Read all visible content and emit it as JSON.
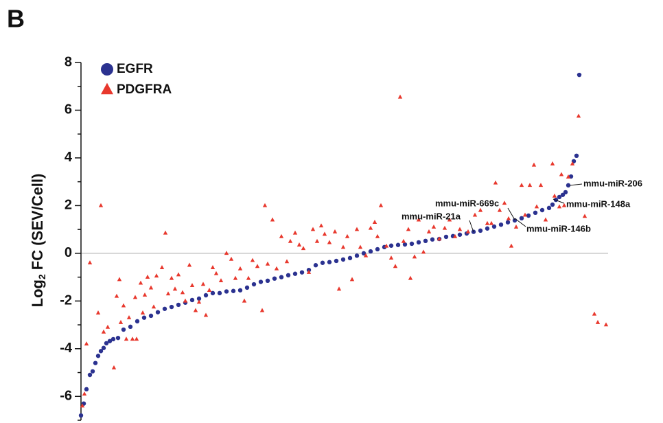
{
  "panel_label": "B",
  "chart_data": {
    "type": "scatter",
    "y_label": {
      "main": "Log",
      "sub": "2",
      "rest": "FC (SEV/Cell)"
    },
    "xlim": [
      0,
      310
    ],
    "ylim": [
      -7,
      8
    ],
    "yticks": [
      -6,
      -4,
      -2,
      0,
      2,
      4,
      6,
      8
    ],
    "yminor_ticks": [
      -7,
      -5,
      -3,
      -1,
      1,
      3,
      5,
      7
    ],
    "hline": 0,
    "legend": "top-left",
    "series": [
      {
        "name": "EGFR",
        "marker": "circle",
        "color": "#2b3290",
        "x": [
          0,
          1.6,
          3.2,
          5.2,
          6.8,
          8.4,
          10,
          11.6,
          13.2,
          14.8,
          16.8,
          18.8,
          21.6,
          24.8,
          28.8,
          32.8,
          36.8,
          40.8,
          44.8,
          48.8,
          52.8,
          56.8,
          60.8,
          64.8,
          68.8,
          72.8,
          76.8,
          80.8,
          84.8,
          88.8,
          92.8,
          96.8,
          100.8,
          104.8,
          108.8,
          112.8,
          116.8,
          120.8,
          124.8,
          128.8,
          132.8,
          136.8,
          140.8,
          144.8,
          148.8,
          152.8,
          156.8,
          160.8,
          164.8,
          168.8,
          172.8,
          176.8,
          180.8,
          184.8,
          188.8,
          192.8,
          196.8,
          200.8,
          204.8,
          208.8,
          212.8,
          216.8,
          220.8,
          224.8,
          228.8,
          232.8,
          236.8,
          240.8,
          244.8,
          248.8,
          252.8,
          256.8,
          260.8,
          264.8,
          268.8,
          272.8,
          274.8,
          276.8,
          278.8,
          280.8,
          282.4,
          284,
          285.6,
          287.2,
          288.8,
          290.4
        ],
        "values": [
          -6.8,
          -6.3,
          -5.7,
          -5.1,
          -4.95,
          -4.6,
          -4.3,
          -4.1,
          -3.97,
          -3.77,
          -3.68,
          -3.6,
          -3.55,
          -3.2,
          -3.08,
          -2.85,
          -2.7,
          -2.62,
          -2.47,
          -2.33,
          -2.25,
          -2.16,
          -2.07,
          -1.96,
          -1.9,
          -1.76,
          -1.67,
          -1.67,
          -1.6,
          -1.58,
          -1.55,
          -1.44,
          -1.3,
          -1.2,
          -1.15,
          -1.06,
          -1.0,
          -0.92,
          -0.86,
          -0.8,
          -0.7,
          -0.5,
          -0.4,
          -0.37,
          -0.32,
          -0.26,
          -0.2,
          -0.1,
          0,
          0.08,
          0.17,
          0.26,
          0.32,
          0.35,
          0.37,
          0.4,
          0.46,
          0.52,
          0.58,
          0.6,
          0.69,
          0.72,
          0.78,
          0.83,
          0.9,
          0.95,
          1.04,
          1.12,
          1.2,
          1.3,
          1.38,
          1.47,
          1.58,
          1.7,
          1.81,
          1.9,
          2.04,
          2.24,
          2.36,
          2.45,
          2.56,
          2.85,
          3.22,
          3.86,
          4.09,
          7.48
        ]
      },
      {
        "name": "PDGFRA",
        "marker": "triangle",
        "color": "#e8382d",
        "x": [
          0.8,
          2,
          3.2,
          5.2,
          10,
          11.6,
          13.2,
          15.6,
          19.2,
          20.8,
          22.4,
          23.2,
          24.8,
          26.4,
          28,
          30,
          31.6,
          32.4,
          34.8,
          36,
          37.2,
          38.8,
          40.8,
          42.4,
          44,
          47.2,
          49.2,
          50.8,
          52.8,
          54.8,
          56.8,
          59.2,
          60.8,
          63.2,
          64.8,
          66.8,
          68.8,
          71.2,
          72.8,
          74.8,
          76.8,
          78.8,
          81.6,
          84.8,
          87.6,
          90,
          92.8,
          95.2,
          97.6,
          100,
          102.8,
          105.6,
          107.2,
          108.8,
          111.6,
          114,
          116.8,
          120,
          122,
          124.8,
          127.2,
          129.6,
          132.8,
          135.2,
          137.6,
          140,
          142,
          144.8,
          148,
          150.4,
          152.8,
          155.2,
          158,
          160.8,
          162.8,
          166,
          168.8,
          171.2,
          172.8,
          174.8,
          178,
          180.8,
          183.2,
          186,
          188,
          190.8,
          192,
          194.4,
          196.8,
          199.6,
          202.8,
          205.6,
          208.8,
          212,
          214.8,
          218,
          220.8,
          225.6,
          229.6,
          232.8,
          236.8,
          239.2,
          241.6,
          244,
          246.8,
          249.2,
          250.8,
          253.6,
          256.8,
          258.8,
          261.6,
          264,
          265.6,
          268,
          270.8,
          274.8,
          276,
          278.8,
          280,
          281.6,
          284,
          286.4,
          290,
          293.6,
          299.2,
          301.2,
          306
        ],
        "values": [
          -6.4,
          -5.9,
          -3.8,
          -0.4,
          -2.5,
          2.0,
          -3.3,
          -3.1,
          -4.8,
          -1.8,
          -1.1,
          -2.9,
          -2.2,
          -3.6,
          -2.7,
          -3.6,
          -1.85,
          -3.6,
          -1.25,
          -2.5,
          -1.75,
          -1.0,
          -1.45,
          -2.25,
          -0.95,
          -0.6,
          0.85,
          -1.7,
          -1.05,
          -1.5,
          -0.9,
          -1.65,
          -2.0,
          -0.5,
          -1.35,
          -2.4,
          -2.05,
          -1.3,
          -2.6,
          -1.55,
          -0.6,
          -0.85,
          -1.15,
          0,
          -0.25,
          -1.05,
          -0.65,
          -2.0,
          -1.05,
          -0.3,
          -0.55,
          -2.4,
          2.0,
          -0.45,
          1.4,
          -0.65,
          0.7,
          -0.35,
          0.5,
          0.85,
          0.35,
          0.2,
          -0.8,
          1.0,
          0.5,
          1.15,
          0.8,
          0.45,
          0.9,
          -1.5,
          0.25,
          0.7,
          -1.1,
          1.0,
          0.25,
          -0.1,
          1.05,
          1.3,
          0.7,
          2.0,
          0.3,
          -0.2,
          -0.55,
          6.55,
          0.5,
          1.0,
          -1.05,
          -0.15,
          1.4,
          0.05,
          0.9,
          1.1,
          0.6,
          1.05,
          1.4,
          0.7,
          1.0,
          0.9,
          1.6,
          1.8,
          1.25,
          1.25,
          2.95,
          1.8,
          2.1,
          1.45,
          0.3,
          1.1,
          2.85,
          1.6,
          2.85,
          3.7,
          1.95,
          2.85,
          1.4,
          3.75,
          2.4,
          1.95,
          3.3,
          2.0,
          3.2,
          3.75,
          5.75,
          1.55,
          -2.55,
          -2.9,
          -3.0
        ]
      }
    ],
    "annotations": [
      "mmu-miR-206",
      "mmu-miR-148a",
      "mmu-miR-669c",
      "mmu-miR-21a",
      "mmu-miR-146b"
    ]
  }
}
